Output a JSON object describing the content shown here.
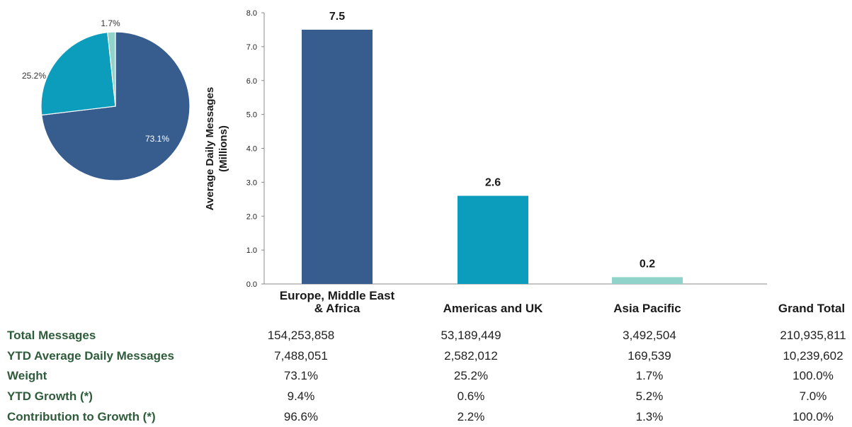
{
  "chart_data": [
    {
      "type": "pie",
      "labels": [
        "Europe, Middle East & Africa",
        "Americas and UK",
        "Asia Pacific"
      ],
      "values": [
        73.1,
        25.2,
        1.7
      ],
      "value_labels": [
        "73.1%",
        "25.2%",
        "1.7%"
      ],
      "colors": [
        "#365d8d",
        "#0c9cbc",
        "#8fd3cb"
      ]
    },
    {
      "type": "bar",
      "categories": [
        "Europe, Middle East & Africa",
        "Americas and UK",
        "Asia Pacific"
      ],
      "category_lines": [
        [
          "Europe, Middle East",
          "& Africa"
        ],
        [
          "Americas and UK"
        ],
        [
          "Asia Pacific"
        ]
      ],
      "values": [
        7.5,
        2.6,
        0.2
      ],
      "value_labels": [
        "7.5",
        "2.6",
        "0.2"
      ],
      "colors": [
        "#365d8d",
        "#0c9cbc",
        "#8fd3cb"
      ],
      "ylabel": "Average Daily Messages",
      "ylabel2": "(Millions)",
      "ylim": [
        0,
        8
      ],
      "yticks": [
        "0.0",
        "1.0",
        "2.0",
        "3.0",
        "4.0",
        "5.0",
        "6.0",
        "7.0",
        "8.0"
      ],
      "grid": false
    }
  ],
  "table": {
    "extra_header": "Grand Total",
    "rows": [
      {
        "label": "Total Messages",
        "values": [
          "154,253,858",
          "53,189,449",
          "3,492,504",
          "210,935,811"
        ]
      },
      {
        "label": "YTD Average Daily Messages",
        "values": [
          "7,488,051",
          "2,582,012",
          "169,539",
          "10,239,602"
        ]
      },
      {
        "label": "Weight",
        "values": [
          "73.1%",
          "25.2%",
          "1.7%",
          "100.0%"
        ]
      },
      {
        "label": "YTD Growth (*)",
        "values": [
          "9.4%",
          "0.6%",
          "5.2%",
          "7.0%"
        ]
      },
      {
        "label": "Contribution to Growth (*)",
        "values": [
          "96.6%",
          "2.2%",
          "1.3%",
          "100.0%"
        ]
      }
    ]
  }
}
